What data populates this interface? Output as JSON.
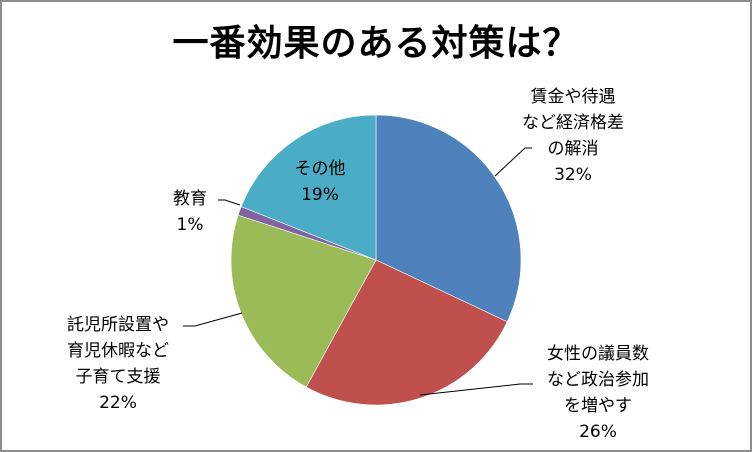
{
  "chart_data": {
    "type": "pie",
    "title": "一番効果のある対策は？",
    "categories": [
      "賃金や待遇など経済格差の解消",
      "女性の議員数など政治参加を増やす",
      "託児所設置や育児休暇など子育て支援",
      "教育",
      "その他"
    ],
    "values": [
      32,
      26,
      22,
      1,
      19
    ],
    "unit": "%",
    "colors": [
      "#4f81bd",
      "#c0504d",
      "#9bbb59",
      "#8064a2",
      "#4bacc6"
    ],
    "start_angle_deg": 0,
    "direction": "clockwise",
    "legend": "none",
    "data_labels": true
  },
  "labels": {
    "economic": {
      "line1": "賃金や待遇",
      "line2": "など経済格差",
      "line3": "の解消",
      "pct": "32%"
    },
    "political": {
      "line1": "女性の議員数",
      "line2": "など政治参加",
      "line3": "を増やす",
      "pct": "26%"
    },
    "childcare": {
      "line1": "託児所設置や",
      "line2": "育児休暇など",
      "line3": "子育て支援",
      "pct": "22%"
    },
    "education": {
      "line1": "教育",
      "pct": "1%"
    },
    "other": {
      "line1": "その他",
      "pct": "19%"
    }
  }
}
